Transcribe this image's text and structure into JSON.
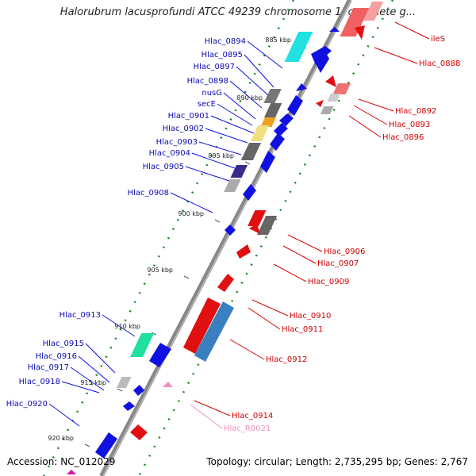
{
  "title": "Halorubrum lacusprofundi ATCC 49239 chromosome 1, complete g...",
  "accession": "Accession: NC_012029",
  "topology": "Topology: circular; Length: 2,735,295 bp; Genes: 2,767",
  "ticks": [
    "885 kbp",
    "890 kbp",
    "895 kbp",
    "900 kbp",
    "905 kbp",
    "910 kbp",
    "915 kbp",
    "920 kbp"
  ],
  "left_labels": [
    "Hlac_0894",
    "Hlac_0895",
    "Hlac_0897",
    "Hlac_0898",
    "nusG",
    "secE",
    "Hlac_0901",
    "Hlac_0902",
    "Hlac_0903",
    "Hlac_0904",
    "Hlac_0905",
    "Hlac_0908",
    "Hlac_0913",
    "Hlac_0915",
    "Hlac_0916",
    "Hlac_0917",
    "Hlac_0918",
    "Hlac_0920"
  ],
  "right_labels": [
    "ileS",
    "Hlac_0888",
    "Hlac_0892",
    "Hlac_0893",
    "Hlac_0896",
    "Hlac_0906",
    "Hlac_0907",
    "Hlac_0909",
    "Hlac_0910",
    "Hlac_0911",
    "Hlac_0912",
    "Hlac_0914",
    "Hlac_R0021"
  ],
  "colors": {
    "forward": "#1010e0",
    "reverse": "#e01010",
    "backbone": "#888888",
    "gc_dots": "#1a8a1a"
  }
}
